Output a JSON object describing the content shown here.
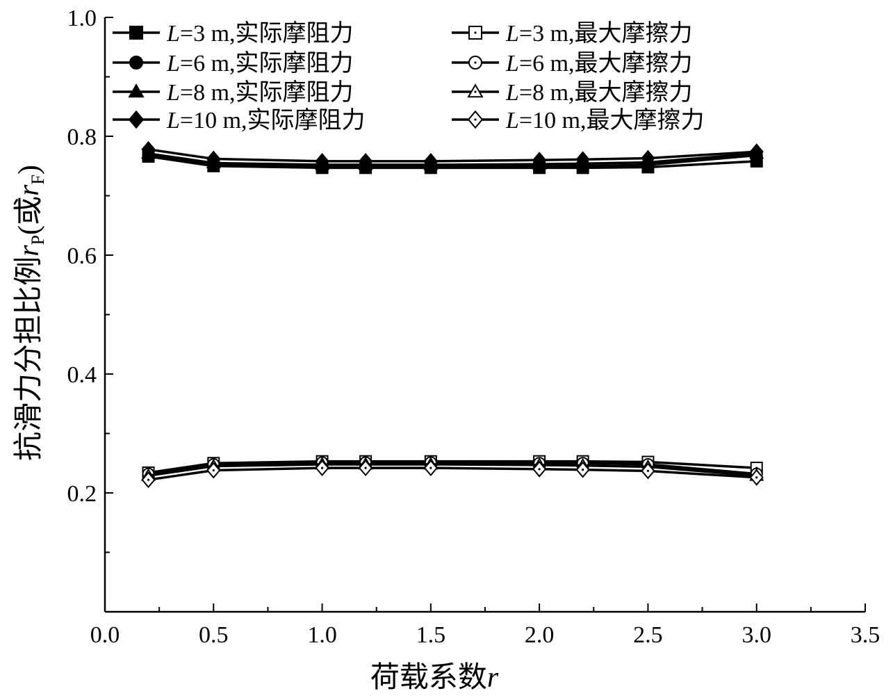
{
  "chart_data": {
    "type": "line",
    "xlabel": "荷载系数r",
    "ylabel": "抗滑力分担比例rP(或rF)",
    "xlim": [
      0.0,
      3.5
    ],
    "ylim": [
      0.0,
      1.0
    ],
    "xticks": [
      "0.0",
      "0.5",
      "1.0",
      "1.5",
      "2.0",
      "2.5",
      "3.0",
      "3.5"
    ],
    "yticks": [
      "0.2",
      "0.4",
      "0.6",
      "0.8",
      "1.0"
    ],
    "grid": false,
    "legend_position": "top",
    "x": [
      0.2,
      0.5,
      1.0,
      1.2,
      1.5,
      2.0,
      2.2,
      2.5,
      3.0
    ],
    "series": [
      {
        "name": "L=3 m,实际摩阻力",
        "marker": "square",
        "filled": true,
        "values": [
          0.766,
          0.75,
          0.747,
          0.747,
          0.747,
          0.747,
          0.747,
          0.748,
          0.758
        ]
      },
      {
        "name": "L=3 m,最大摩擦力",
        "marker": "square",
        "filled": false,
        "values": [
          0.234,
          0.25,
          0.253,
          0.253,
          0.253,
          0.253,
          0.253,
          0.252,
          0.242
        ]
      },
      {
        "name": "L=6 m,实际摩阻力",
        "marker": "circle",
        "filled": true,
        "values": [
          0.768,
          0.752,
          0.749,
          0.749,
          0.749,
          0.75,
          0.75,
          0.752,
          0.768
        ]
      },
      {
        "name": "L=6 m,最大摩擦力",
        "marker": "circle",
        "filled": false,
        "values": [
          0.232,
          0.248,
          0.251,
          0.251,
          0.251,
          0.25,
          0.25,
          0.248,
          0.232
        ]
      },
      {
        "name": "L=8 m,实际摩阻力",
        "marker": "triangle",
        "filled": true,
        "values": [
          0.771,
          0.755,
          0.752,
          0.752,
          0.752,
          0.753,
          0.754,
          0.756,
          0.771
        ]
      },
      {
        "name": "L=8 m,最大摩擦力",
        "marker": "triangle",
        "filled": false,
        "values": [
          0.229,
          0.245,
          0.248,
          0.248,
          0.248,
          0.247,
          0.246,
          0.244,
          0.229
        ]
      },
      {
        "name": "L=10 m,实际摩阻力",
        "marker": "diamond",
        "filled": true,
        "values": [
          0.778,
          0.762,
          0.758,
          0.758,
          0.758,
          0.76,
          0.761,
          0.763,
          0.774
        ]
      },
      {
        "name": "L=10 m,最大摩擦力",
        "marker": "diamond",
        "filled": false,
        "values": [
          0.222,
          0.238,
          0.242,
          0.242,
          0.242,
          0.24,
          0.239,
          0.237,
          0.226
        ]
      }
    ],
    "legend": [
      {
        "series": 0,
        "prefix": "L",
        "suffix": "=3 m,实际摩阻力"
      },
      {
        "series": 1,
        "prefix": "L",
        "suffix": "=3 m,最大摩擦力"
      },
      {
        "series": 2,
        "prefix": "L",
        "suffix": "=6 m,实际摩阻力"
      },
      {
        "series": 3,
        "prefix": "L",
        "suffix": "=6 m,最大摩擦力"
      },
      {
        "series": 4,
        "prefix": "L",
        "suffix": "=8 m,实际摩阻力"
      },
      {
        "series": 5,
        "prefix": "L",
        "suffix": "=8 m,最大摩擦力"
      },
      {
        "series": 6,
        "prefix": "L",
        "suffix": "=10 m,实际摩阻力"
      },
      {
        "series": 7,
        "prefix": "L",
        "suffix": "=10 m,最大摩擦力"
      }
    ],
    "xlabel_parts": {
      "main": "荷载系数",
      "var": "r"
    },
    "ylabel_parts": {
      "main": "抗滑力分担比例",
      "v1": "r",
      "s1": "P",
      "mid": "(或",
      "v2": "r",
      "s2": "F",
      "end": ")"
    },
    "colors": {
      "line": "#000000",
      "background": "#ffffff"
    }
  }
}
